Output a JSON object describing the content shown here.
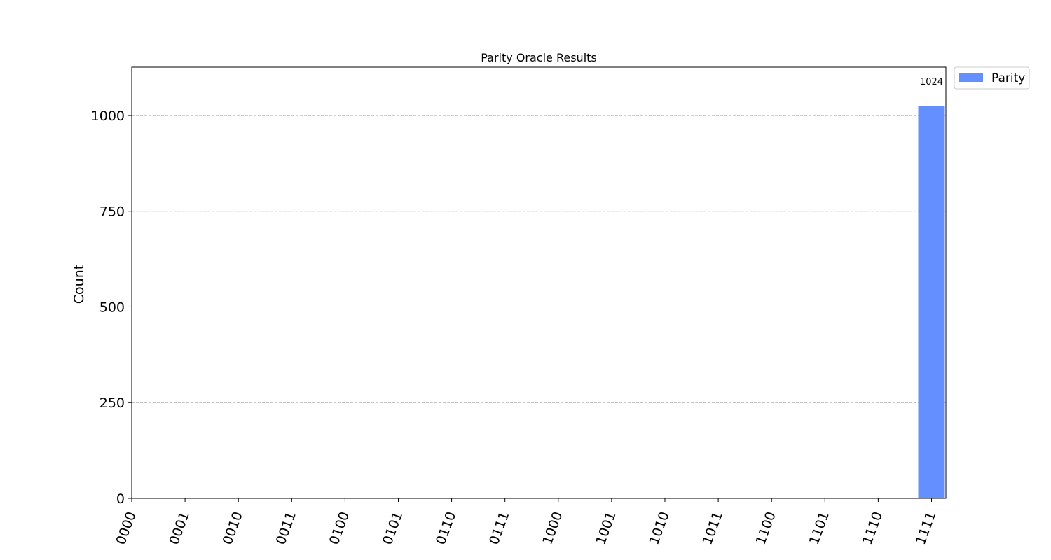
{
  "chart_data": {
    "type": "bar",
    "title": "Parity Oracle Results",
    "xlabel": "",
    "ylabel": "Count",
    "categories": [
      "0000",
      "0001",
      "0010",
      "0011",
      "0100",
      "0101",
      "0110",
      "0111",
      "1000",
      "1001",
      "1010",
      "1011",
      "1100",
      "1101",
      "1110",
      "1111"
    ],
    "series": [
      {
        "name": "Parity",
        "color": "#648fff",
        "values": [
          0,
          0,
          0,
          0,
          0,
          0,
          0,
          0,
          0,
          0,
          0,
          0,
          0,
          0,
          0,
          1024
        ]
      }
    ],
    "data_labels": [
      {
        "category": "1111",
        "text": "1024"
      }
    ],
    "yticks": [
      0,
      250,
      500,
      750,
      1000
    ],
    "ylim": [
      0,
      1126
    ],
    "grid": "horizontal dashed",
    "legend_position": "outside-top-right"
  }
}
